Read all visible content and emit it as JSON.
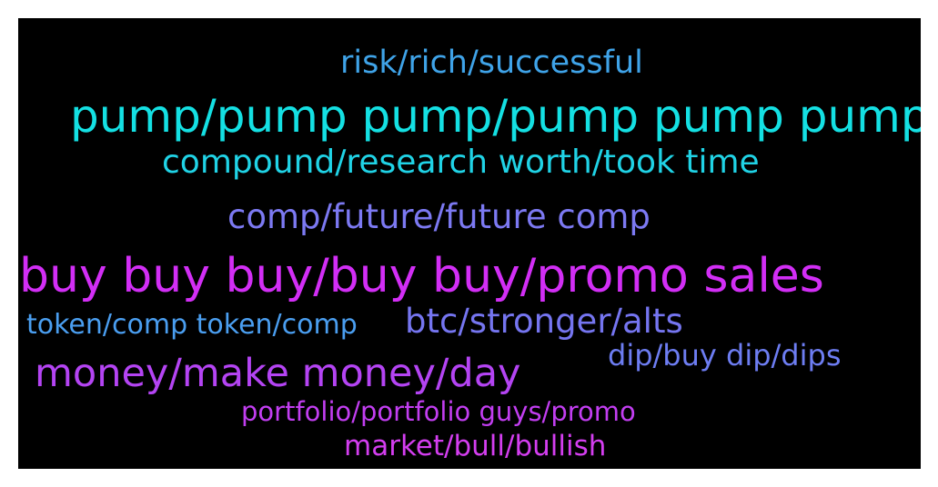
{
  "words": [
    {
      "text": "risk/rich/successful",
      "color": "#3fa3e8"
    },
    {
      "text": "pump/pump pump/pump pump pump",
      "color": "#14e0e3"
    },
    {
      "text": "compound/research worth/took time",
      "color": "#20d3e6"
    },
    {
      "text": "comp/future/future comp",
      "color": "#7c79f2"
    },
    {
      "text": "buy buy buy/buy buy/promo sales",
      "color": "#d22ef5"
    },
    {
      "text": "token/comp token/comp",
      "color": "#4a9ef0"
    },
    {
      "text": "btc/stronger/alts",
      "color": "#7575f0"
    },
    {
      "text": "dip/buy dip/dips",
      "color": "#6d7df2"
    },
    {
      "text": "money/make money/day",
      "color": "#b444f3"
    },
    {
      "text": "portfolio/portfolio guys/promo",
      "color": "#c23ef1"
    },
    {
      "text": "market/bull/bullish",
      "color": "#d43ef0"
    }
  ]
}
